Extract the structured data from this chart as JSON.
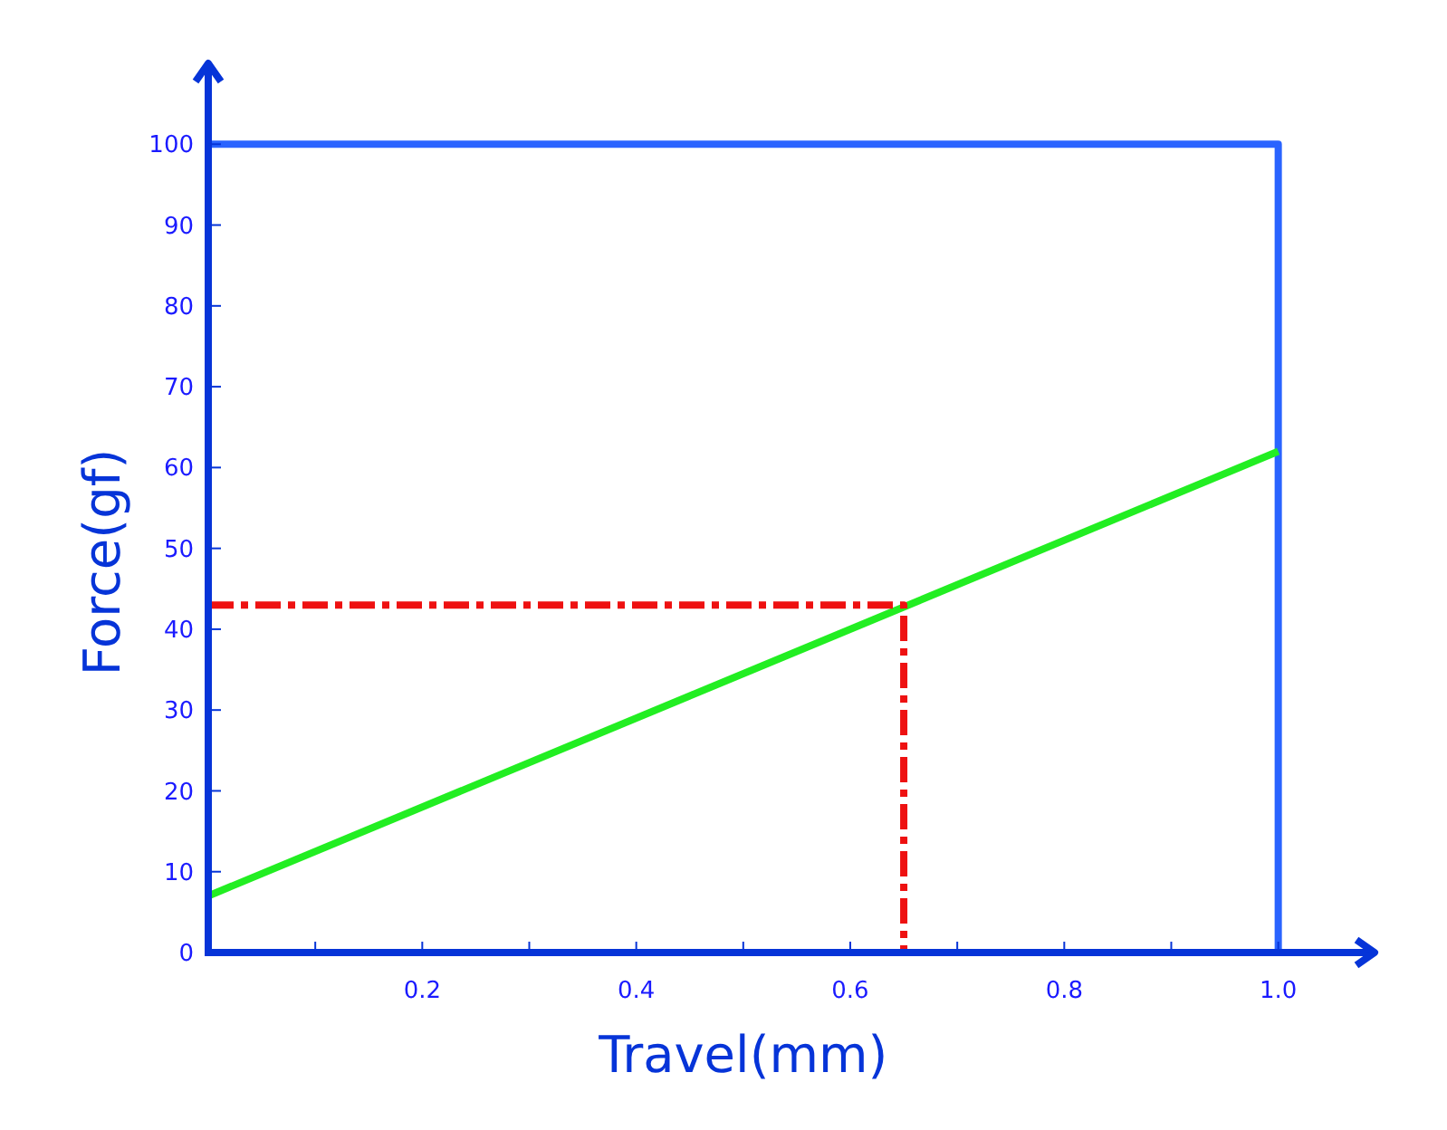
{
  "chart_data": {
    "type": "line",
    "xlabel": "Travel(mm)",
    "ylabel": "Force(gf)",
    "xlim": [
      0,
      1.09
    ],
    "ylim": [
      0,
      110
    ],
    "xticks": [
      {
        "value": 0.1,
        "label": null
      },
      0.2,
      {
        "value": 0.3,
        "label": null
      },
      0.4,
      {
        "value": 0.5,
        "label": null
      },
      0.6,
      {
        "value": 0.7,
        "label": null
      },
      0.8,
      {
        "value": 0.9,
        "label": null
      },
      {
        "value": 1.0,
        "label": "1.0"
      }
    ],
    "yticks": [
      0,
      10,
      20,
      30,
      40,
      50,
      60,
      70,
      80,
      90,
      100
    ],
    "grid": false,
    "marker": "none",
    "series": [
      {
        "x": [
          0,
          1,
          1
        ],
        "values": [
          100,
          100,
          0
        ],
        "color": "#2a64ff",
        "line_style": "solid"
      },
      {
        "x": [
          0,
          1
        ],
        "values": [
          7,
          62
        ],
        "color": "#22ee22",
        "line_style": "solid"
      },
      {
        "x": [
          0,
          0.65,
          0.65
        ],
        "values": [
          43,
          43,
          0
        ],
        "color": "#ee1111",
        "line_style": "dashed"
      }
    ]
  }
}
